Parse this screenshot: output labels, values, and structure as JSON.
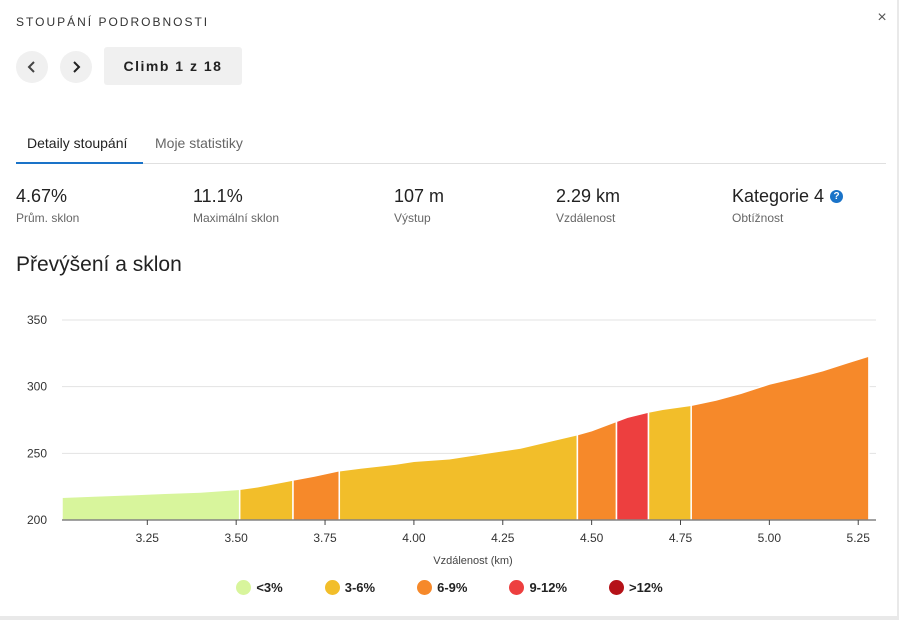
{
  "header": {
    "title": "Stoupání podrobnosti",
    "close_icon": "×"
  },
  "navigation": {
    "prev_icon": "chevron-left-icon",
    "next_icon": "chevron-right-icon",
    "counter": "Climb 1 z 18"
  },
  "tabs": [
    {
      "label": "Detaily stoupání",
      "active": true
    },
    {
      "label": "Moje statistiky",
      "active": false
    }
  ],
  "stats": [
    {
      "value": "4.67%",
      "label": "Prům. sklon"
    },
    {
      "value": "11.1%",
      "label": "Maximální sklon"
    },
    {
      "value": "107 m",
      "label": "Výstup"
    },
    {
      "value": "2.29 km",
      "label": "Vzdálenost"
    },
    {
      "value": "Kategorie 4",
      "label": "Obtížnost",
      "help_icon": "?"
    }
  ],
  "section_title": "Převýšení a sklon",
  "legend": [
    {
      "label": "<3%",
      "color": "#d8f59c"
    },
    {
      "label": "3-6%",
      "color": "#f2be2a"
    },
    {
      "label": "6-9%",
      "color": "#f6892a"
    },
    {
      "label": "9-12%",
      "color": "#ed3f3f"
    },
    {
      "label": ">12%",
      "color": "#b51218"
    }
  ],
  "chart_data": {
    "type": "area",
    "xlabel": "Vzdálenost (km)",
    "ylabel": "",
    "xlim": [
      3.01,
      5.3
    ],
    "ylim": [
      200,
      350
    ],
    "x_ticks": [
      "3.25",
      "3.50",
      "3.75",
      "4.00",
      "4.25",
      "4.50",
      "4.75",
      "5.00",
      "5.25"
    ],
    "x_tick_values": [
      3.25,
      3.5,
      3.75,
      4.0,
      4.25,
      4.5,
      4.75,
      5.0,
      5.25
    ],
    "y_ticks": [
      200,
      250,
      300,
      350
    ],
    "grid": true,
    "profile": {
      "x": [
        3.01,
        3.1,
        3.2,
        3.3,
        3.4,
        3.51,
        3.56,
        3.66,
        3.72,
        3.79,
        3.85,
        3.95,
        4.0,
        4.1,
        4.2,
        4.3,
        4.38,
        4.46,
        4.5,
        4.57,
        4.6,
        4.66,
        4.7,
        4.78,
        4.85,
        4.92,
        5.0,
        5.08,
        5.15,
        5.22,
        5.28
      ],
      "y": [
        217,
        218,
        219,
        220,
        221,
        223,
        225,
        230,
        233,
        237,
        239,
        242,
        244,
        246,
        250,
        254,
        259,
        264,
        267,
        274,
        277,
        281,
        283,
        286,
        290,
        295,
        302,
        307,
        312,
        318,
        323
      ]
    },
    "segments": [
      {
        "from": 3.01,
        "to": 3.51,
        "grade": "<3%"
      },
      {
        "from": 3.51,
        "to": 3.66,
        "grade": "3-6%"
      },
      {
        "from": 3.66,
        "to": 3.79,
        "grade": "6-9%"
      },
      {
        "from": 3.79,
        "to": 4.46,
        "grade": "3-6%"
      },
      {
        "from": 4.46,
        "to": 4.57,
        "grade": "6-9%"
      },
      {
        "from": 4.57,
        "to": 4.66,
        "grade": "9-12%"
      },
      {
        "from": 4.66,
        "to": 4.78,
        "grade": "3-6%"
      },
      {
        "from": 4.78,
        "to": 5.28,
        "grade": "6-9%"
      }
    ]
  }
}
